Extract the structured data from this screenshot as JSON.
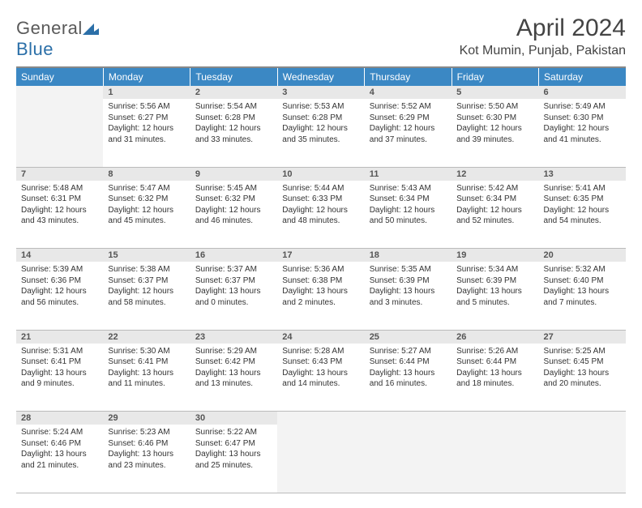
{
  "logo": {
    "word1": "General",
    "word2": "Blue"
  },
  "title": "April 2024",
  "location": "Kot Mumin, Punjab, Pakistan",
  "header_color": "#3b88c4",
  "daynum_bg": "#e8e8e8",
  "empty_bg": "#f3f3f3",
  "weekdays": [
    "Sunday",
    "Monday",
    "Tuesday",
    "Wednesday",
    "Thursday",
    "Friday",
    "Saturday"
  ],
  "weeks": [
    [
      null,
      {
        "n": "1",
        "sr": "5:56 AM",
        "ss": "6:27 PM",
        "dl": "12 hours and 31 minutes."
      },
      {
        "n": "2",
        "sr": "5:54 AM",
        "ss": "6:28 PM",
        "dl": "12 hours and 33 minutes."
      },
      {
        "n": "3",
        "sr": "5:53 AM",
        "ss": "6:28 PM",
        "dl": "12 hours and 35 minutes."
      },
      {
        "n": "4",
        "sr": "5:52 AM",
        "ss": "6:29 PM",
        "dl": "12 hours and 37 minutes."
      },
      {
        "n": "5",
        "sr": "5:50 AM",
        "ss": "6:30 PM",
        "dl": "12 hours and 39 minutes."
      },
      {
        "n": "6",
        "sr": "5:49 AM",
        "ss": "6:30 PM",
        "dl": "12 hours and 41 minutes."
      }
    ],
    [
      {
        "n": "7",
        "sr": "5:48 AM",
        "ss": "6:31 PM",
        "dl": "12 hours and 43 minutes."
      },
      {
        "n": "8",
        "sr": "5:47 AM",
        "ss": "6:32 PM",
        "dl": "12 hours and 45 minutes."
      },
      {
        "n": "9",
        "sr": "5:45 AM",
        "ss": "6:32 PM",
        "dl": "12 hours and 46 minutes."
      },
      {
        "n": "10",
        "sr": "5:44 AM",
        "ss": "6:33 PM",
        "dl": "12 hours and 48 minutes."
      },
      {
        "n": "11",
        "sr": "5:43 AM",
        "ss": "6:34 PM",
        "dl": "12 hours and 50 minutes."
      },
      {
        "n": "12",
        "sr": "5:42 AM",
        "ss": "6:34 PM",
        "dl": "12 hours and 52 minutes."
      },
      {
        "n": "13",
        "sr": "5:41 AM",
        "ss": "6:35 PM",
        "dl": "12 hours and 54 minutes."
      }
    ],
    [
      {
        "n": "14",
        "sr": "5:39 AM",
        "ss": "6:36 PM",
        "dl": "12 hours and 56 minutes."
      },
      {
        "n": "15",
        "sr": "5:38 AM",
        "ss": "6:37 PM",
        "dl": "12 hours and 58 minutes."
      },
      {
        "n": "16",
        "sr": "5:37 AM",
        "ss": "6:37 PM",
        "dl": "13 hours and 0 minutes."
      },
      {
        "n": "17",
        "sr": "5:36 AM",
        "ss": "6:38 PM",
        "dl": "13 hours and 2 minutes."
      },
      {
        "n": "18",
        "sr": "5:35 AM",
        "ss": "6:39 PM",
        "dl": "13 hours and 3 minutes."
      },
      {
        "n": "19",
        "sr": "5:34 AM",
        "ss": "6:39 PM",
        "dl": "13 hours and 5 minutes."
      },
      {
        "n": "20",
        "sr": "5:32 AM",
        "ss": "6:40 PM",
        "dl": "13 hours and 7 minutes."
      }
    ],
    [
      {
        "n": "21",
        "sr": "5:31 AM",
        "ss": "6:41 PM",
        "dl": "13 hours and 9 minutes."
      },
      {
        "n": "22",
        "sr": "5:30 AM",
        "ss": "6:41 PM",
        "dl": "13 hours and 11 minutes."
      },
      {
        "n": "23",
        "sr": "5:29 AM",
        "ss": "6:42 PM",
        "dl": "13 hours and 13 minutes."
      },
      {
        "n": "24",
        "sr": "5:28 AM",
        "ss": "6:43 PM",
        "dl": "13 hours and 14 minutes."
      },
      {
        "n": "25",
        "sr": "5:27 AM",
        "ss": "6:44 PM",
        "dl": "13 hours and 16 minutes."
      },
      {
        "n": "26",
        "sr": "5:26 AM",
        "ss": "6:44 PM",
        "dl": "13 hours and 18 minutes."
      },
      {
        "n": "27",
        "sr": "5:25 AM",
        "ss": "6:45 PM",
        "dl": "13 hours and 20 minutes."
      }
    ],
    [
      {
        "n": "28",
        "sr": "5:24 AM",
        "ss": "6:46 PM",
        "dl": "13 hours and 21 minutes."
      },
      {
        "n": "29",
        "sr": "5:23 AM",
        "ss": "6:46 PM",
        "dl": "13 hours and 23 minutes."
      },
      {
        "n": "30",
        "sr": "5:22 AM",
        "ss": "6:47 PM",
        "dl": "13 hours and 25 minutes."
      },
      null,
      null,
      null,
      null
    ]
  ],
  "labels": {
    "sunrise": "Sunrise:",
    "sunset": "Sunset:",
    "daylight": "Daylight:"
  }
}
